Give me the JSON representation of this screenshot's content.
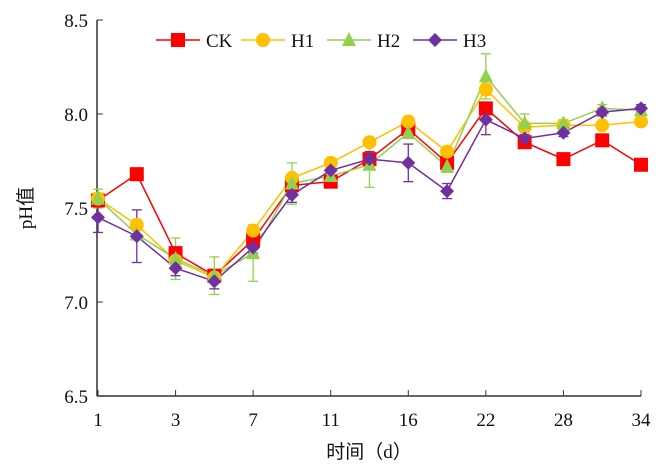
{
  "chart_data": {
    "type": "line",
    "title": "",
    "xlabel": "时间（d）",
    "ylabel": "pH值",
    "ylim": [
      6.5,
      8.5
    ],
    "yticks": [
      "6.5",
      "7.0",
      "7.5",
      "8.0",
      "8.5"
    ],
    "ytick_values": [
      6.5,
      7.0,
      7.5,
      8.0,
      8.5
    ],
    "categories": [
      "1",
      "",
      "3",
      "",
      "7",
      "",
      "11",
      "",
      "16",
      "",
      "22",
      "",
      "28",
      "",
      "34"
    ],
    "legend_position": "top",
    "series": [
      {
        "name": "CK",
        "color": "#ff0000",
        "marker": "square",
        "values": [
          7.54,
          7.68,
          7.26,
          7.14,
          7.33,
          7.62,
          7.64,
          7.76,
          7.92,
          7.74,
          8.03,
          7.85,
          7.76,
          7.86,
          7.73
        ],
        "errors": [
          0.03,
          0.02,
          0.02,
          0.02,
          0.03,
          0.02,
          0.02,
          0.03,
          0.02,
          0.02,
          0.03,
          0.02,
          0.02,
          0.02,
          0.02
        ]
      },
      {
        "name": "H1",
        "color": "#ffc000",
        "marker": "circle",
        "values": [
          7.55,
          7.41,
          7.22,
          7.13,
          7.38,
          7.66,
          7.74,
          7.85,
          7.96,
          7.8,
          8.13,
          7.93,
          7.94,
          7.94,
          7.96
        ],
        "errors": [
          0.03,
          0.03,
          0.02,
          0.02,
          0.02,
          0.02,
          0.02,
          0.02,
          0.02,
          0.02,
          0.03,
          0.02,
          0.02,
          0.02,
          0.02
        ]
      },
      {
        "name": "H2",
        "color": "#92d050",
        "marker": "triangle",
        "values": [
          7.55,
          7.36,
          7.23,
          7.14,
          7.26,
          7.63,
          7.67,
          7.73,
          7.9,
          7.72,
          8.2,
          7.95,
          7.95,
          8.03,
          8.02
        ],
        "errors": [
          0.05,
          0.03,
          0.11,
          0.1,
          0.15,
          0.11,
          0.03,
          0.12,
          0.03,
          0.03,
          0.12,
          0.05,
          0.02,
          0.02,
          0.02
        ]
      },
      {
        "name": "H3",
        "color": "#7030a0",
        "marker": "diamond",
        "values": [
          7.45,
          7.35,
          7.18,
          7.11,
          7.29,
          7.57,
          7.7,
          7.76,
          7.74,
          7.59,
          7.97,
          7.87,
          7.9,
          8.01,
          8.03
        ],
        "errors": [
          0.08,
          0.14,
          0.04,
          0.04,
          0.03,
          0.04,
          0.03,
          0.04,
          0.1,
          0.04,
          0.08,
          0.02,
          0.02,
          0.02,
          0.02
        ]
      }
    ]
  }
}
